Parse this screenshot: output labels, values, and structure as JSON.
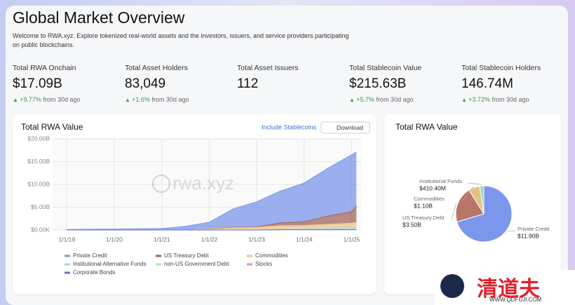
{
  "header": {
    "title": "Global Market Overview",
    "description": "Welcome to RWA.xyz. Explore tokenized real-world assets and the investors, issuers, and service providers participating on public blockchains."
  },
  "stats": [
    {
      "label": "Total RWA Onchain",
      "value": "$17.09B",
      "change": "+9.77%",
      "note": "from 30d ago"
    },
    {
      "label": "Total Asset Holders",
      "value": "83,049",
      "change": "+1.6%",
      "note": "from 30d ago"
    },
    {
      "label": "Total Asset Issuers",
      "value": "112"
    },
    {
      "label": "Total Stablecoin Value",
      "value": "$215.63B",
      "change": "+5.7%",
      "note": "from 30d ago"
    },
    {
      "label": "Total Stablecoin Holders",
      "value": "146.74M",
      "change": "+3.72%",
      "note": "from 30d ago"
    }
  ],
  "area_chart": {
    "type": "area",
    "title": "Total RWA Value",
    "toggle": "Include Stablecoins",
    "button": "Download",
    "watermark": "rwa.xyz",
    "x": [
      2019,
      2020,
      2021,
      2021.5,
      2022,
      2022.5,
      2023,
      2023.5,
      2024,
      2024.5,
      2025,
      2025.1
    ],
    "xlim": [
      2018.7,
      2025.2
    ],
    "xticks": [
      {
        "value": 2019,
        "label": "1/1/19"
      },
      {
        "value": 2020,
        "label": "1/1/20"
      },
      {
        "value": 2021,
        "label": "1/1/21"
      },
      {
        "value": 2022,
        "label": "1/1/22"
      },
      {
        "value": 2023,
        "label": "1/1/23"
      },
      {
        "value": 2024,
        "label": "1/1/24"
      },
      {
        "value": 2025,
        "label": "1/1/25"
      }
    ],
    "ylim": [
      0,
      20
    ],
    "yticks": [
      {
        "value": 0,
        "label": "$0.00K"
      },
      {
        "value": 5,
        "label": "$5.00B"
      },
      {
        "value": 10,
        "label": "$10.00B"
      },
      {
        "value": 15,
        "label": "$15.00B"
      },
      {
        "value": 20,
        "label": "$20.00B"
      }
    ],
    "grid": true,
    "stacked": true,
    "series": [
      {
        "name": "Private Credit",
        "color": "#7b96ea",
        "values": [
          0.1,
          0.2,
          0.3,
          0.8,
          1.5,
          4,
          5.5,
          7,
          8.5,
          10.5,
          12.5,
          11.9
        ]
      },
      {
        "name": "US Treasury Debt",
        "color": "#a0665a",
        "values": [
          0,
          0,
          0,
          0,
          0,
          0.1,
          0.1,
          0.6,
          0.8,
          1.8,
          2.5,
          3.5
        ]
      },
      {
        "name": "Commodities",
        "color": "#e9c48a",
        "values": [
          0,
          0,
          0,
          0,
          0.2,
          0.5,
          0.6,
          0.8,
          0.8,
          0.9,
          1,
          1.1
        ]
      },
      {
        "name": "Institutional Alternative Funds",
        "color": "#a9d2ef",
        "values": [
          0,
          0,
          0,
          0,
          0,
          0,
          0,
          0.1,
          0.1,
          0.2,
          0.3,
          0.4
        ]
      },
      {
        "name": "non-US Government Debt",
        "color": "#b9e3bd",
        "values": [
          0,
          0,
          0,
          0,
          0,
          0,
          0,
          0,
          0.05,
          0.1,
          0.1,
          0.1
        ]
      },
      {
        "name": "Stocks",
        "color": "#d79ab8",
        "values": [
          0,
          0,
          0,
          0,
          0,
          0,
          0,
          0,
          0,
          0,
          0.05,
          0.05
        ]
      },
      {
        "name": "Corporate Bonds",
        "color": "#6a6fd6",
        "values": [
          0,
          0,
          0,
          0,
          0,
          0,
          0,
          0.05,
          0.05,
          0.05,
          0.05,
          0.05
        ]
      }
    ]
  },
  "pie_chart": {
    "type": "pie",
    "title": "Total RWA Value",
    "categories": [
      "Private Credit",
      "US Treasury Debt",
      "Commodities",
      "Institutional Funds"
    ],
    "values": [
      11.9,
      3.5,
      1.1,
      0.4104
    ],
    "value_labels": [
      "$11.90B",
      "$3.50B",
      "$1.10B",
      "$410.40M"
    ],
    "colors": [
      "#7b96ea",
      "#b8756a",
      "#e3c47e",
      "#9fd6c2"
    ]
  },
  "watermark": {
    "logo": "清道夫",
    "url": "WWW.QDFUJI.COM"
  }
}
